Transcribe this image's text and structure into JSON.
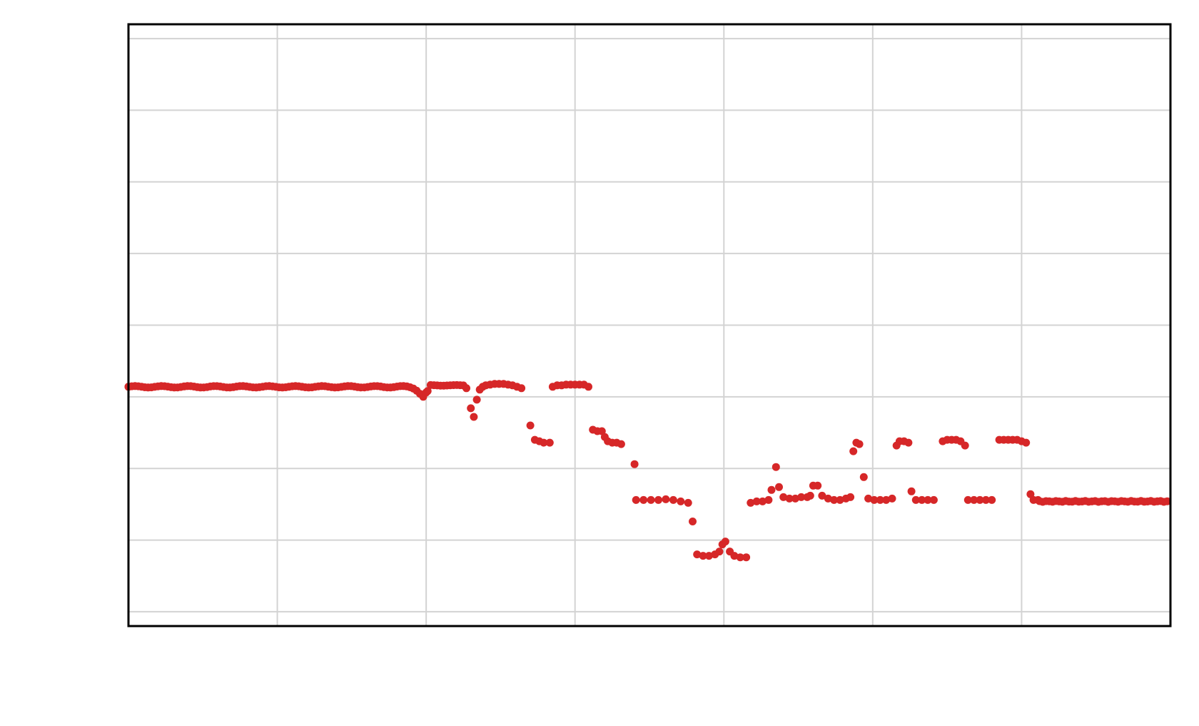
{
  "chart_data": {
    "type": "scatter",
    "title": "",
    "xlabel": "",
    "ylabel": "",
    "xlim": [
      0,
      700
    ],
    "ylim": [
      -0.6,
      3.6
    ],
    "xgrid": [
      0,
      100,
      200,
      300,
      400,
      500,
      600,
      700
    ],
    "ygrid": [
      -0.5,
      0,
      0.5,
      1,
      1.5,
      2,
      2.5,
      3,
      3.5
    ],
    "grid": true,
    "legend": "none",
    "marker_color": "#d62728",
    "series": [
      {
        "segments": [
          {
            "x0": 0,
            "x1": 198,
            "step": 2.2,
            "y": 1.07,
            "amp": 0.005,
            "dipAt": 200,
            "dipDepth": 0.08,
            "dipWidth": 4
          },
          {
            "x0": 203,
            "x1": 226,
            "step": 2.2,
            "y": 1.08,
            "amp": 0.002
          }
        ],
        "points": [
          [
            0,
            1.07
          ],
          [
            200,
            1.03
          ],
          [
            201,
            1.04
          ],
          [
            227,
            1.06
          ],
          [
            230,
            0.92
          ],
          [
            232,
            0.86
          ],
          [
            234,
            0.98
          ],
          [
            236,
            1.05
          ],
          [
            238,
            1.07
          ],
          [
            240,
            1.08
          ],
          [
            243,
            1.085
          ],
          [
            246,
            1.09
          ],
          [
            249,
            1.09
          ],
          [
            252,
            1.09
          ],
          [
            255,
            1.085
          ],
          [
            258,
            1.08
          ],
          [
            261,
            1.07
          ],
          [
            264,
            1.06
          ],
          [
            270,
            0.8
          ],
          [
            273,
            0.7
          ],
          [
            276,
            0.69
          ],
          [
            279,
            0.68
          ],
          [
            283,
            0.68
          ],
          [
            285,
            1.07
          ],
          [
            288,
            1.08
          ],
          [
            291,
            1.08
          ],
          [
            294,
            1.085
          ],
          [
            297,
            1.085
          ],
          [
            300,
            1.085
          ],
          [
            303,
            1.085
          ],
          [
            306,
            1.085
          ],
          [
            309,
            1.07
          ],
          [
            312,
            0.77
          ],
          [
            315,
            0.76
          ],
          [
            318,
            0.76
          ],
          [
            320,
            0.72
          ],
          [
            322,
            0.69
          ],
          [
            325,
            0.68
          ],
          [
            328,
            0.68
          ],
          [
            331,
            0.67
          ],
          [
            340,
            0.53
          ],
          [
            341,
            0.28
          ],
          [
            346,
            0.28
          ],
          [
            351,
            0.28
          ],
          [
            356,
            0.28
          ],
          [
            361,
            0.285
          ],
          [
            366,
            0.28
          ],
          [
            371,
            0.27
          ],
          [
            376,
            0.26
          ],
          [
            379,
            0.13
          ],
          [
            382,
            -0.1
          ],
          [
            386,
            -0.11
          ],
          [
            390,
            -0.11
          ],
          [
            394,
            -0.1
          ],
          [
            397,
            -0.08
          ],
          [
            399,
            -0.03
          ],
          [
            401,
            -0.01
          ],
          [
            404,
            -0.08
          ],
          [
            407,
            -0.11
          ],
          [
            411,
            -0.12
          ],
          [
            415,
            -0.12
          ],
          [
            418,
            0.26
          ],
          [
            422,
            0.27
          ],
          [
            426,
            0.27
          ],
          [
            430,
            0.28
          ],
          [
            432,
            0.35
          ],
          [
            435,
            0.51
          ],
          [
            437,
            0.37
          ],
          [
            440,
            0.3
          ],
          [
            444,
            0.29
          ],
          [
            448,
            0.29
          ],
          [
            452,
            0.3
          ],
          [
            456,
            0.3
          ],
          [
            458,
            0.31
          ],
          [
            460,
            0.38
          ],
          [
            463,
            0.38
          ],
          [
            466,
            0.31
          ],
          [
            470,
            0.29
          ],
          [
            474,
            0.28
          ],
          [
            478,
            0.28
          ],
          [
            482,
            0.29
          ],
          [
            485,
            0.3
          ],
          [
            487,
            0.62
          ],
          [
            489,
            0.68
          ],
          [
            491,
            0.67
          ],
          [
            494,
            0.44
          ],
          [
            497,
            0.29
          ],
          [
            501,
            0.28
          ],
          [
            505,
            0.28
          ],
          [
            509,
            0.28
          ],
          [
            513,
            0.29
          ],
          [
            516,
            0.66
          ],
          [
            518,
            0.69
          ],
          [
            521,
            0.69
          ],
          [
            524,
            0.68
          ],
          [
            526,
            0.34
          ],
          [
            529,
            0.28
          ],
          [
            533,
            0.28
          ],
          [
            537,
            0.28
          ],
          [
            541,
            0.28
          ],
          [
            547,
            0.69
          ],
          [
            550,
            0.7
          ],
          [
            553,
            0.7
          ],
          [
            556,
            0.7
          ],
          [
            559,
            0.69
          ],
          [
            562,
            0.66
          ],
          [
            564,
            0.28
          ],
          [
            568,
            0.28
          ],
          [
            572,
            0.28
          ],
          [
            576,
            0.28
          ],
          [
            580,
            0.28
          ],
          [
            585,
            0.7
          ],
          [
            588,
            0.7
          ],
          [
            591,
            0.7
          ],
          [
            594,
            0.7
          ],
          [
            597,
            0.7
          ],
          [
            600,
            0.69
          ],
          [
            603,
            0.68
          ],
          [
            606,
            0.32
          ],
          [
            608,
            0.28
          ],
          [
            611,
            0.28
          ]
        ],
        "tail": {
          "x0": 612,
          "x1": 700,
          "step": 2.2,
          "y": 0.27
        }
      }
    ]
  }
}
